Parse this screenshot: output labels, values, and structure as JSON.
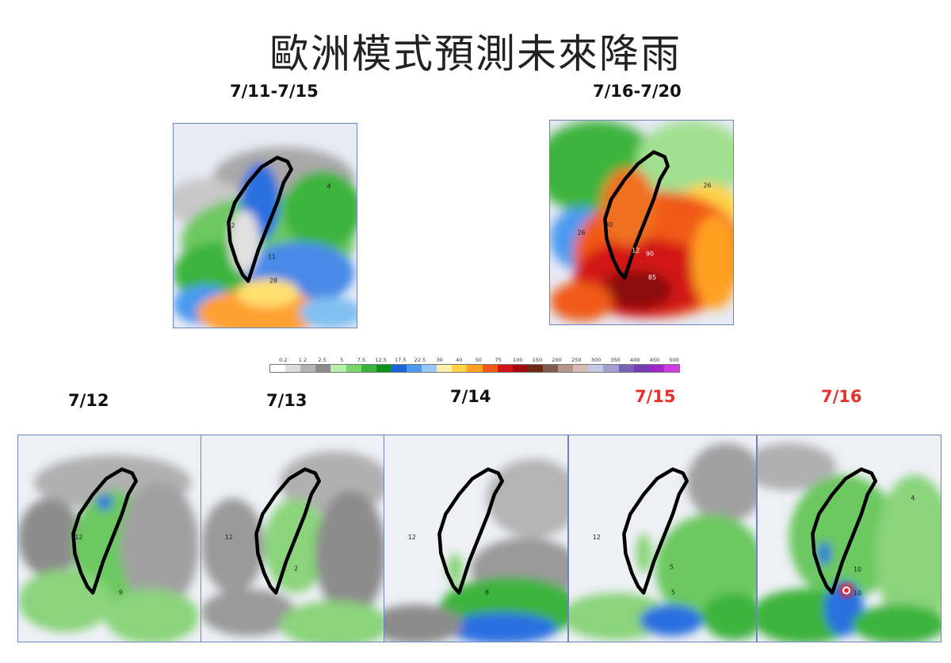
{
  "title": "歐洲模式預測未來降雨",
  "maps": {
    "weekly": [
      {
        "label": "7/11-7/15",
        "numbers": [
          "12",
          "4",
          "11",
          "28"
        ]
      },
      {
        "label": "7/16-7/20",
        "numbers": [
          "26",
          "26",
          "30",
          "90",
          "85",
          "12"
        ]
      }
    ],
    "daily": [
      {
        "label": "7/12",
        "highlight": false,
        "numbers": [
          "12",
          "9"
        ]
      },
      {
        "label": "7/13",
        "highlight": false,
        "numbers": [
          "12",
          "2"
        ]
      },
      {
        "label": "7/14",
        "highlight": false,
        "numbers": [
          "12",
          "8"
        ]
      },
      {
        "label": "7/15",
        "highlight": true,
        "numbers": [
          "12",
          "5",
          "5"
        ]
      },
      {
        "label": "7/16",
        "highlight": true,
        "numbers": [
          "10",
          "10",
          "4"
        ]
      }
    ]
  },
  "legend": {
    "ticks": [
      "0.2",
      "1.2",
      "2.5",
      "5",
      "7.5",
      "12.5",
      "17.5",
      "22.5",
      "30",
      "40",
      "50",
      "75",
      "100",
      "150",
      "200",
      "250",
      "300",
      "350",
      "400",
      "450",
      "500"
    ],
    "colors": [
      "#ffffff",
      "#dcdcdc",
      "#b4b4b4",
      "#8c8c8c",
      "#b4f0a8",
      "#78d66a",
      "#3cb43c",
      "#10901c",
      "#1a64d6",
      "#4a9af0",
      "#96c8f8",
      "#fff0a8",
      "#ffd24a",
      "#ffa020",
      "#f05a14",
      "#d21414",
      "#a00a0a",
      "#6e2814",
      "#825a50",
      "#b4968c",
      "#d2beb4",
      "#c8c8e6",
      "#a0a0d2",
      "#7864b4",
      "#783cb4",
      "#a028c8",
      "#d23cdc"
    ]
  },
  "colors": {
    "label_highlight": "#e8302a",
    "border": "#6a85c0"
  }
}
